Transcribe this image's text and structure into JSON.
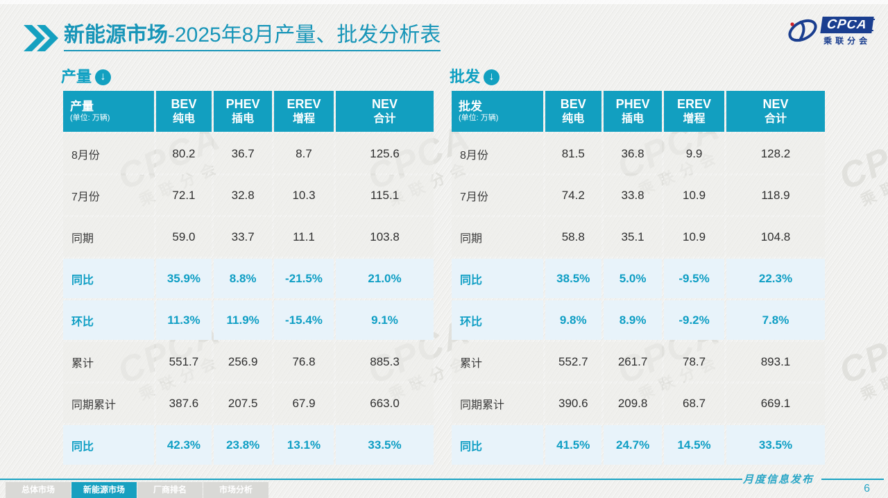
{
  "header": {
    "title_bold": "新能源市场",
    "title_rest": "-2025年8月产量、批发分析表"
  },
  "logo": {
    "abbr": "CPCA",
    "subtext": "乘联分会"
  },
  "watermark": {
    "line1": "CPCA",
    "line2": "乘联分会"
  },
  "colors": {
    "accent_teal": "#129FC0",
    "percent_row_bg": "#E8F3FA",
    "percent_text": "#0E9EC4",
    "logo_blue": "#1A3E8F",
    "tab_inactive_bg": "#D9D9D6"
  },
  "tables": [
    {
      "section_title": "产量",
      "unit_note": "(单位: 万辆)",
      "columns": [
        [
          "BEV",
          "纯电"
        ],
        [
          "PHEV",
          "插电"
        ],
        [
          "EREV",
          "增程"
        ],
        [
          "NEV",
          "合计"
        ]
      ],
      "rows": [
        {
          "label": "8月份",
          "type": "normal",
          "values": [
            "80.2",
            "36.7",
            "8.7",
            "125.6"
          ]
        },
        {
          "label": "7月份",
          "type": "normal",
          "values": [
            "72.1",
            "32.8",
            "10.3",
            "115.1"
          ]
        },
        {
          "label": "同期",
          "type": "normal",
          "values": [
            "59.0",
            "33.7",
            "11.1",
            "103.8"
          ]
        },
        {
          "label": "同比",
          "type": "percent",
          "values": [
            "35.9%",
            "8.8%",
            "-21.5%",
            "21.0%"
          ]
        },
        {
          "label": "环比",
          "type": "percent",
          "values": [
            "11.3%",
            "11.9%",
            "-15.4%",
            "9.1%"
          ]
        },
        {
          "label": "累计",
          "type": "normal",
          "values": [
            "551.7",
            "256.9",
            "76.8",
            "885.3"
          ]
        },
        {
          "label": "同期累计",
          "type": "normal",
          "values": [
            "387.6",
            "207.5",
            "67.9",
            "663.0"
          ]
        },
        {
          "label": "同比",
          "type": "percent",
          "values": [
            "42.3%",
            "23.8%",
            "13.1%",
            "33.5%"
          ]
        }
      ]
    },
    {
      "section_title": "批发",
      "unit_note": "(单位: 万辆)",
      "columns": [
        [
          "BEV",
          "纯电"
        ],
        [
          "PHEV",
          "插电"
        ],
        [
          "EREV",
          "增程"
        ],
        [
          "NEV",
          "合计"
        ]
      ],
      "rows": [
        {
          "label": "8月份",
          "type": "normal",
          "values": [
            "81.5",
            "36.8",
            "9.9",
            "128.2"
          ]
        },
        {
          "label": "7月份",
          "type": "normal",
          "values": [
            "74.2",
            "33.8",
            "10.9",
            "118.9"
          ]
        },
        {
          "label": "同期",
          "type": "normal",
          "values": [
            "58.8",
            "35.1",
            "10.9",
            "104.8"
          ]
        },
        {
          "label": "同比",
          "type": "percent",
          "values": [
            "38.5%",
            "5.0%",
            "-9.5%",
            "22.3%"
          ]
        },
        {
          "label": "环比",
          "type": "percent",
          "values": [
            "9.8%",
            "8.9%",
            "-9.2%",
            "7.8%"
          ]
        },
        {
          "label": "累计",
          "type": "normal",
          "values": [
            "552.7",
            "261.7",
            "78.7",
            "893.1"
          ]
        },
        {
          "label": "同期累计",
          "type": "normal",
          "values": [
            "390.6",
            "209.8",
            "68.7",
            "669.1"
          ]
        },
        {
          "label": "同比",
          "type": "percent",
          "values": [
            "41.5%",
            "24.7%",
            "14.5%",
            "33.5%"
          ]
        }
      ]
    }
  ],
  "footer": {
    "tabs": [
      {
        "label": "总体市场",
        "active": false
      },
      {
        "label": "新能源市场",
        "active": true
      },
      {
        "label": "厂商排名",
        "active": false
      },
      {
        "label": "市场分析",
        "active": false
      }
    ],
    "publication_label": "月度信息发布",
    "page_number": "6"
  }
}
